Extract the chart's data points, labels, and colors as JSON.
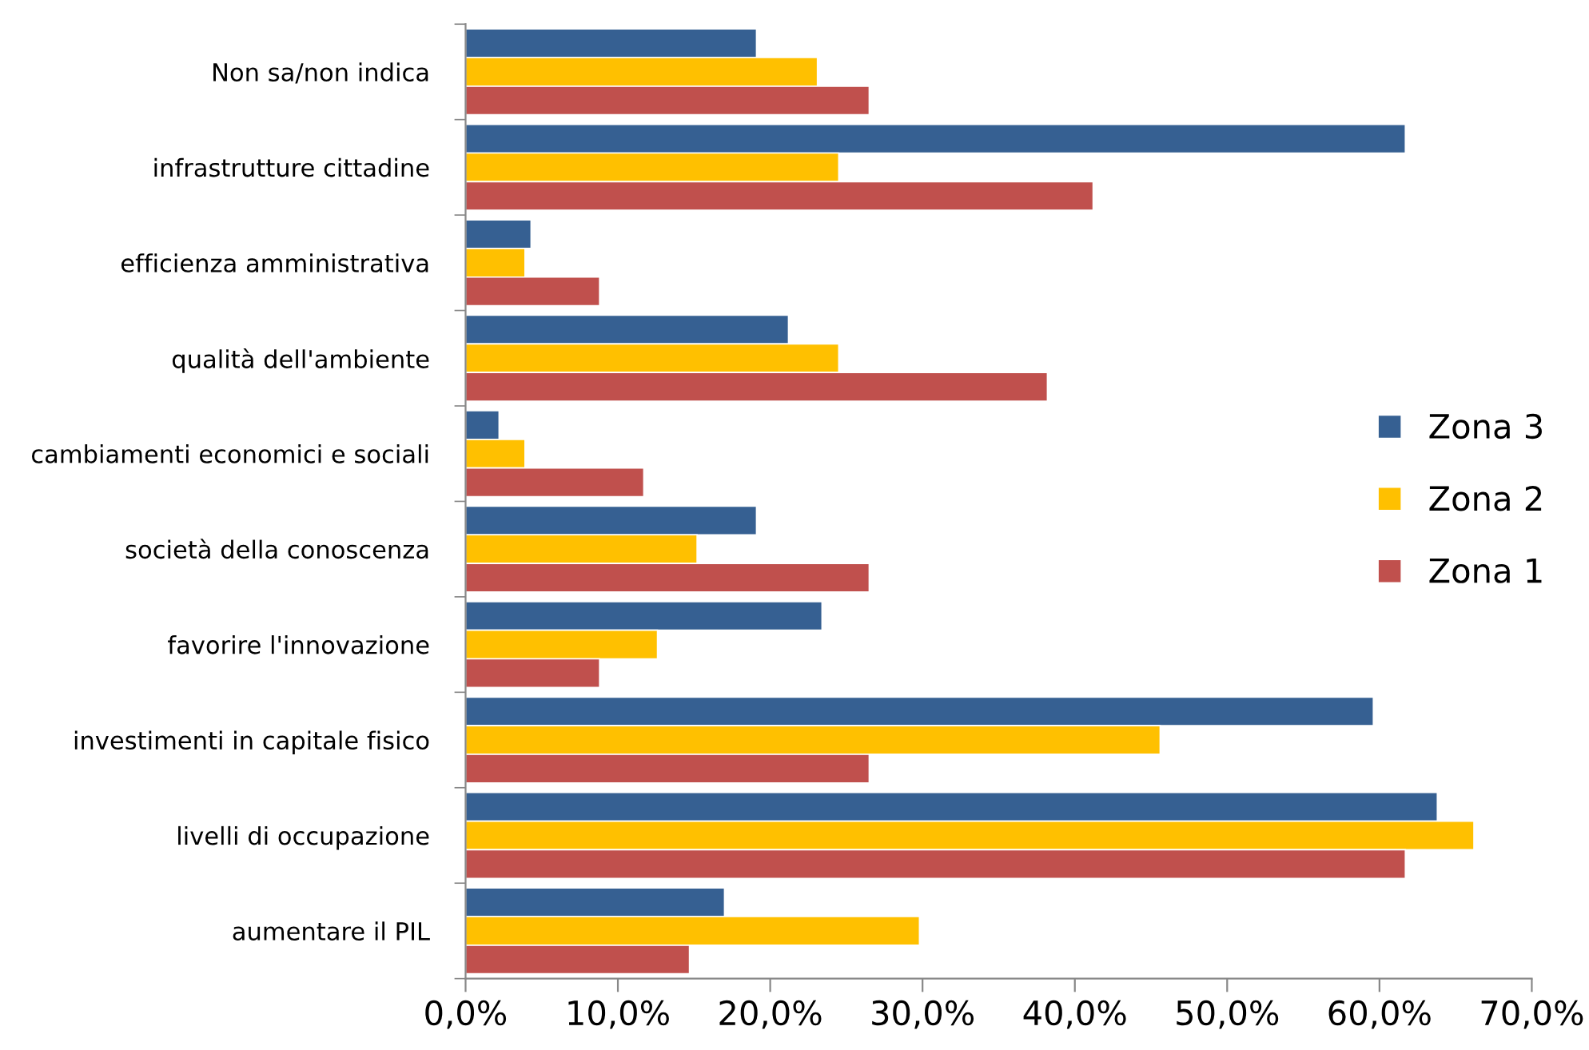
{
  "chart_data": {
    "type": "bar",
    "orientation": "horizontal",
    "categories": [
      "Non sa/non indica",
      "infrastrutture cittadine",
      "efficienza amministrativa",
      "qualità dell'ambiente",
      "cambiamenti economici e sociali",
      "società della conoscenza",
      "favorire l'innovazione",
      "investimenti in capitale fisico",
      "livelli di occupazione",
      "aumentare il PIL"
    ],
    "series": [
      {
        "name": "Zona 3",
        "color": "#366092",
        "values": [
          19.1,
          61.7,
          4.3,
          21.2,
          2.2,
          19.1,
          23.4,
          59.6,
          63.8,
          17.0
        ]
      },
      {
        "name": "Zona 2",
        "color": "#ffc000",
        "values": [
          23.1,
          24.5,
          3.9,
          24.5,
          3.9,
          15.2,
          12.6,
          45.6,
          66.2,
          29.8
        ]
      },
      {
        "name": "Zona 1",
        "color": "#c0504d",
        "values": [
          26.5,
          41.2,
          8.8,
          38.2,
          11.7,
          26.5,
          8.8,
          26.5,
          61.7,
          14.7
        ]
      }
    ],
    "xlim": [
      0,
      70
    ],
    "xticks": [
      {
        "value": 0,
        "label": "0,0%"
      },
      {
        "value": 10,
        "label": "10,0%"
      },
      {
        "value": 20,
        "label": "20,0%"
      },
      {
        "value": 30,
        "label": "30,0%"
      },
      {
        "value": 40,
        "label": "40,0%"
      },
      {
        "value": 50,
        "label": "50,0%"
      },
      {
        "value": 60,
        "label": "60,0%"
      },
      {
        "value": 70,
        "label": "70,0%"
      }
    ],
    "grid": false,
    "legend": "right"
  }
}
